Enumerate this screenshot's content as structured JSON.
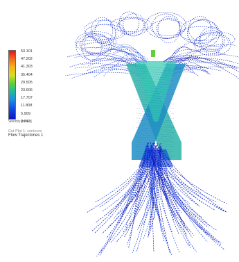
{
  "legend": {
    "ticks": [
      "53.101",
      "47.202",
      "41.303",
      "35.404",
      "29.505",
      "23.606",
      "17.707",
      "11.808",
      "5.909",
      "0.010"
    ],
    "unit_label": "Velocity [mm/s]",
    "plot_label": "Cut Plot 1: contours",
    "flow_label": "Flow Trajectories 1"
  },
  "colors": {
    "max": "#e0141e",
    "high": "#f5b31c",
    "mid": "#5fcf3a",
    "low": "#1c8ee3",
    "min": "#0a17c9"
  }
}
